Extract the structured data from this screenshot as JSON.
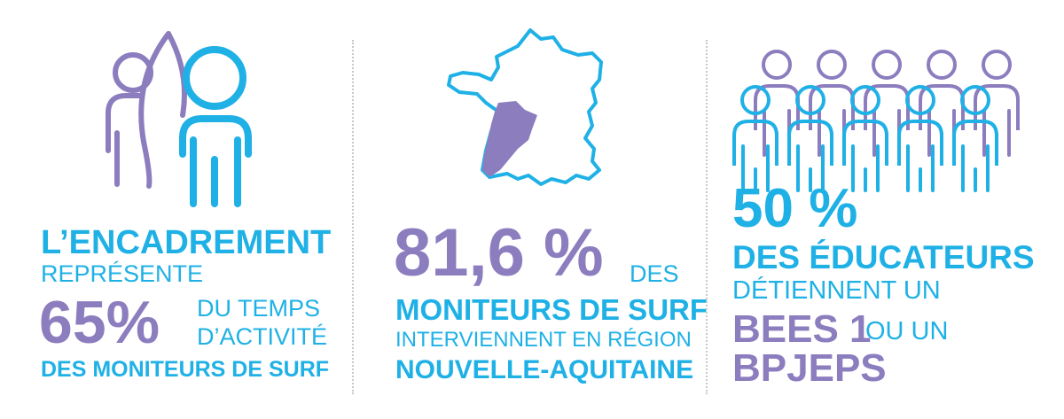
{
  "colors": {
    "blue": "#1fb1e6",
    "purple": "#8c7dbf",
    "divider": "#c9c9c9"
  },
  "panel1": {
    "icon": "surfers-with-board-icon",
    "line1": "L’ENCADREMENT",
    "line2": "REPRÉSENTE",
    "stat": "65%",
    "line3a": "DU TEMPS",
    "line3b": "D’ACTIVITÉ",
    "line4": "DES MONITEURS DE SURF"
  },
  "panel2": {
    "icon": "france-map-icon",
    "stat": "81,6 %",
    "stat_suffix": "DES",
    "line1": "MONITEURS DE SURF",
    "line2": "INTERVIENNENT EN RÉGION",
    "line3": "NOUVELLE-AQUITAINE"
  },
  "panel3": {
    "icon": "group-of-people-icon",
    "stat": "50 %",
    "line1": "DES ÉDUCATEURS",
    "line2": "DÉTIENNENT UN",
    "line3a": "BEES 1",
    "line3b": "OU UN",
    "line4": "BPJEPS"
  }
}
